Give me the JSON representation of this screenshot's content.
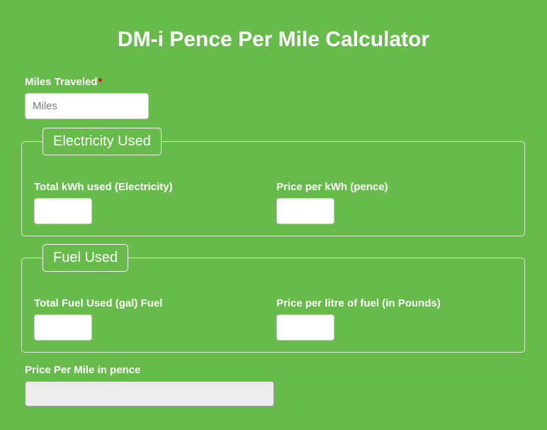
{
  "page": {
    "title": "DM-i Pence Per Mile Calculator"
  },
  "form": {
    "miles": {
      "label": "Miles Traveled",
      "required_marker": "*",
      "placeholder": "Miles",
      "value": ""
    },
    "electricity": {
      "legend": "Electricity Used",
      "fields": [
        {
          "label": "Total kWh used (Electricity)",
          "value": ""
        },
        {
          "label": "Price per kWh (pence)",
          "value": ""
        }
      ]
    },
    "fuel": {
      "legend": "Fuel Used",
      "fields": [
        {
          "label": "Total Fuel Used (gal) Fuel",
          "value": ""
        },
        {
          "label": "Price per litre of fuel (in Pounds)",
          "value": ""
        }
      ]
    },
    "result": {
      "label": "Price Per Mile in pence",
      "value": "",
      "disabled": true
    }
  },
  "colors": {
    "background": "#66bb4a",
    "label_text": "#ffffff",
    "required_marker": "#e00000",
    "input_border": "#c9c9c9",
    "disabled_input_bg": "#ececec",
    "disabled_input_border": "#9b9b9b"
  }
}
